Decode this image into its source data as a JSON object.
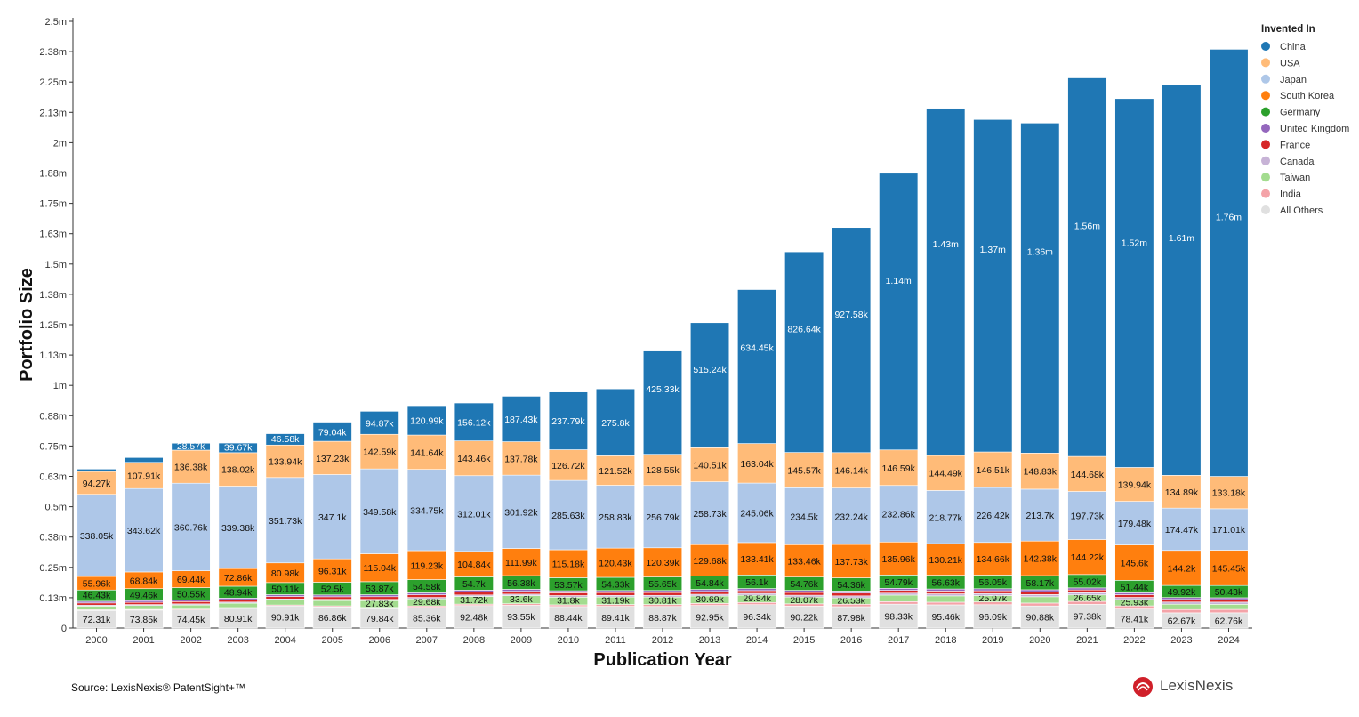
{
  "chart_data": {
    "type": "bar",
    "stacked": true,
    "xlabel": "Publication Year",
    "ylabel": "Portfolio Size",
    "ylim": [
      0,
      2500000
    ],
    "y_ticks": [
      {
        "value": 0,
        "label": "0"
      },
      {
        "value": 125000,
        "label": "0.13m"
      },
      {
        "value": 250000,
        "label": "0.25m"
      },
      {
        "value": 375000,
        "label": "0.38m"
      },
      {
        "value": 500000,
        "label": "0.5m"
      },
      {
        "value": 625000,
        "label": "0.63m"
      },
      {
        "value": 750000,
        "label": "0.75m"
      },
      {
        "value": 875000,
        "label": "0.88m"
      },
      {
        "value": 1000000,
        "label": "1m"
      },
      {
        "value": 1125000,
        "label": "1.13m"
      },
      {
        "value": 1250000,
        "label": "1.25m"
      },
      {
        "value": 1375000,
        "label": "1.38m"
      },
      {
        "value": 1500000,
        "label": "1.5m"
      },
      {
        "value": 1625000,
        "label": "1.63m"
      },
      {
        "value": 1750000,
        "label": "1.75m"
      },
      {
        "value": 1875000,
        "label": "1.88m"
      },
      {
        "value": 2000000,
        "label": "2m"
      },
      {
        "value": 2125000,
        "label": "2.13m"
      },
      {
        "value": 2250000,
        "label": "2.25m"
      },
      {
        "value": 2375000,
        "label": "2.38m"
      },
      {
        "value": 2500000,
        "label": "2.5m"
      }
    ],
    "legend_title": "Invented In",
    "legend_position": "top-right",
    "categories": [
      "2000",
      "2001",
      "2002",
      "2003",
      "2004",
      "2005",
      "2006",
      "2007",
      "2008",
      "2009",
      "2010",
      "2011",
      "2012",
      "2013",
      "2014",
      "2015",
      "2016",
      "2017",
      "2018",
      "2019",
      "2020",
      "2021",
      "2022",
      "2023",
      "2024"
    ],
    "series": [
      {
        "name": "All Others",
        "color": "#e0e0e0",
        "values": [
          72310,
          73850,
          74450,
          80910,
          90910,
          86860,
          79840,
          85360,
          92480,
          93550,
          88440,
          89410,
          88870,
          92950,
          96340,
          90220,
          87980,
          98330,
          95460,
          96090,
          90880,
          97380,
          78410,
          62670,
          62760
        ],
        "labels": [
          "72.31k",
          "73.85k",
          "74.45k",
          "80.91k",
          "90.91k",
          "86.86k",
          "79.84k",
          "85.36k",
          "92.48k",
          "93.55k",
          "88.44k",
          "89.41k",
          "88.87k",
          "92.95k",
          "96.34k",
          "90.22k",
          "87.98k",
          "98.33k",
          "95.46k",
          "96.09k",
          "90.88k",
          "97.38k",
          "78.41k",
          "62.67k",
          "62.76k"
        ]
      },
      {
        "name": "India",
        "color": "#f4a3a8",
        "values": [
          3000,
          3000,
          3500,
          3500,
          4000,
          4500,
          5000,
          5500,
          6000,
          6500,
          7000,
          7500,
          8000,
          8500,
          9000,
          9500,
          10000,
          10500,
          11000,
          11500,
          12000,
          12500,
          13000,
          13500,
          14000
        ],
        "labels": []
      },
      {
        "name": "Taiwan",
        "color": "#a3dc8f",
        "values": [
          15000,
          16000,
          17000,
          18000,
          20000,
          22000,
          27830,
          29680,
          31720,
          33600,
          31800,
          31190,
          30810,
          30690,
          29840,
          28070,
          26530,
          27000,
          26000,
          25970,
          26000,
          26650,
          25930,
          22000,
          21000
        ],
        "labels": [
          "",
          "",
          "",
          "",
          "",
          "",
          "27.83k",
          "29.68k",
          "31.72k",
          "33.6k",
          "31.8k",
          "31.19k",
          "30.81k",
          "30.69k",
          "29.84k",
          "28.07k",
          "26.53k",
          "",
          "",
          "25.97k",
          "",
          "26.65k",
          "25.93k",
          "",
          ""
        ]
      },
      {
        "name": "Canada",
        "color": "#c7b3d6",
        "values": [
          4000,
          4000,
          4500,
          4500,
          5000,
          5000,
          5500,
          5500,
          6000,
          6000,
          6500,
          6500,
          7000,
          7000,
          7500,
          7500,
          8000,
          8000,
          8500,
          8500,
          9000,
          9000,
          9000,
          9000,
          9000
        ],
        "labels": []
      },
      {
        "name": "France",
        "color": "#d62728",
        "values": [
          9000,
          9000,
          9500,
          9500,
          10000,
          10500,
          11000,
          11000,
          11500,
          11500,
          11500,
          11500,
          11500,
          11500,
          11500,
          11500,
          11500,
          11500,
          11500,
          11500,
          11500,
          11500,
          11000,
          10500,
          10000
        ],
        "labels": []
      },
      {
        "name": "United Kingdom",
        "color": "#9467bd",
        "values": [
          7000,
          7000,
          7000,
          7000,
          7500,
          7500,
          8000,
          8000,
          8500,
          8500,
          8500,
          8500,
          8500,
          8500,
          8500,
          8500,
          8500,
          8500,
          8500,
          8500,
          8500,
          8500,
          8000,
          8000,
          8000
        ],
        "labels": []
      },
      {
        "name": "Germany",
        "color": "#2ca02c",
        "values": [
          46430,
          49460,
          50550,
          48940,
          50110,
          52500,
          53870,
          54580,
          54700,
          56380,
          53570,
          54330,
          55650,
          54840,
          56100,
          54760,
          54360,
          54790,
          56630,
          56050,
          58170,
          55020,
          51440,
          49920,
          50430
        ],
        "labels": [
          "46.43k",
          "49.46k",
          "50.55k",
          "48.94k",
          "50.11k",
          "52.5k",
          "53.87k",
          "54.58k",
          "54.7k",
          "56.38k",
          "53.57k",
          "54.33k",
          "55.65k",
          "54.84k",
          "56.1k",
          "54.76k",
          "54.36k",
          "54.79k",
          "56.63k",
          "56.05k",
          "58.17k",
          "55.02k",
          "51.44k",
          "49.92k",
          "50.43k"
        ]
      },
      {
        "name": "South Korea",
        "color": "#ff7f0e",
        "values": [
          55960,
          68840,
          69440,
          72860,
          80980,
          96310,
          115040,
          119230,
          104840,
          111990,
          115180,
          120430,
          120390,
          129680,
          133410,
          133460,
          137730,
          135960,
          130210,
          134660,
          142380,
          144220,
          145600,
          144200,
          145450
        ],
        "labels": [
          "55.96k",
          "68.84k",
          "69.44k",
          "72.86k",
          "80.98k",
          "96.31k",
          "115.04k",
          "119.23k",
          "104.84k",
          "111.99k",
          "115.18k",
          "120.43k",
          "120.39k",
          "129.68k",
          "133.41k",
          "133.46k",
          "137.73k",
          "135.96k",
          "130.21k",
          "134.66k",
          "142.38k",
          "144.22k",
          "145.6k",
          "144.2k",
          "145.45k"
        ]
      },
      {
        "name": "Japan",
        "color": "#aec7e8",
        "values": [
          338050,
          343620,
          360760,
          339380,
          351730,
          347100,
          349580,
          334750,
          312010,
          301920,
          285630,
          258830,
          256790,
          258730,
          245060,
          234500,
          232240,
          232860,
          218770,
          226420,
          213700,
          197730,
          179480,
          174470,
          171010
        ],
        "labels": [
          "338.05k",
          "343.62k",
          "360.76k",
          "339.38k",
          "351.73k",
          "347.1k",
          "349.58k",
          "334.75k",
          "312.01k",
          "301.92k",
          "285.63k",
          "258.83k",
          "256.79k",
          "258.73k",
          "245.06k",
          "234.5k",
          "232.24k",
          "232.86k",
          "218.77k",
          "226.42k",
          "213.7k",
          "197.73k",
          "179.48k",
          "174.47k",
          "171.01k"
        ]
      },
      {
        "name": "USA",
        "color": "#ffbb78",
        "values": [
          94270,
          107910,
          136380,
          138020,
          133940,
          137230,
          142590,
          141640,
          143460,
          137780,
          126720,
          121520,
          128550,
          140510,
          163040,
          145570,
          146140,
          146590,
          144490,
          146510,
          148830,
          144680,
          139940,
          134890,
          133180
        ],
        "labels": [
          "94.27k",
          "107.91k",
          "136.38k",
          "138.02k",
          "133.94k",
          "137.23k",
          "142.59k",
          "141.64k",
          "143.46k",
          "137.78k",
          "126.72k",
          "121.52k",
          "128.55k",
          "140.51k",
          "163.04k",
          "145.57k",
          "146.14k",
          "146.59k",
          "144.49k",
          "146.51k",
          "148.83k",
          "144.68k",
          "139.94k",
          "134.89k",
          "133.18k"
        ]
      },
      {
        "name": "China",
        "color": "#1f77b4",
        "values": [
          10000,
          20000,
          28570,
          39670,
          46580,
          79040,
          94870,
          120990,
          156120,
          187430,
          237790,
          275800,
          425330,
          515240,
          634450,
          826640,
          927580,
          1140000,
          1430000,
          1370000,
          1360000,
          1560000,
          1520000,
          1610000,
          1760000
        ],
        "labels": [
          "",
          "",
          "28.57k",
          "39.67k",
          "46.58k",
          "79.04k",
          "94.87k",
          "120.99k",
          "156.12k",
          "187.43k",
          "237.79k",
          "275.8k",
          "425.33k",
          "515.24k",
          "634.45k",
          "826.64k",
          "927.58k",
          "1.14m",
          "1.43m",
          "1.37m",
          "1.36m",
          "1.56m",
          "1.52m",
          "1.61m",
          "1.76m"
        ]
      }
    ],
    "legend_order": [
      "China",
      "USA",
      "Japan",
      "South Korea",
      "Germany",
      "United Kingdom",
      "France",
      "Canada",
      "Taiwan",
      "India",
      "All Others"
    ]
  },
  "footer": {
    "source": "Source: LexisNexis® PatentSight+™",
    "brand": "LexisNexis"
  },
  "colors": {
    "dark_text_on": [
      "China"
    ]
  }
}
